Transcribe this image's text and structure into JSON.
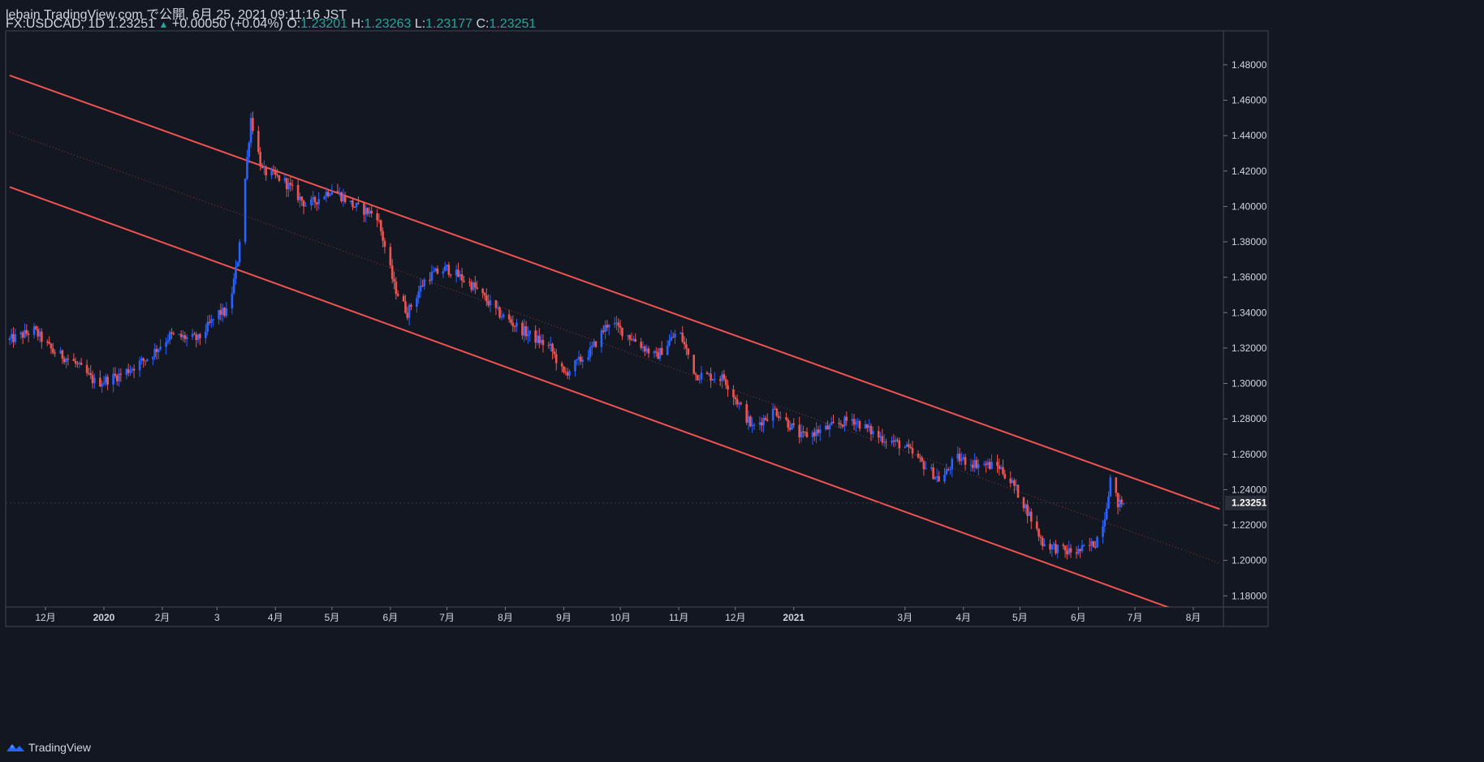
{
  "header": {
    "publisher": "lebain TradingView.com で公開, 6月 25, 2021 09:11:16 JST",
    "symbol_line_prefix": "FX:USDCAD, 1D 1.23251",
    "change": "+0.00050 (+0.04%)",
    "o_label": "O:",
    "o_value": "1.23201",
    "h_label": "H:",
    "h_value": "1.23263",
    "l_label": "L:",
    "l_value": "1.23177",
    "c_label": "C:",
    "c_value": "1.23251"
  },
  "footer": {
    "brand": "TradingView"
  },
  "colors": {
    "background": "#131722",
    "up": "#2962ff",
    "down": "#ef5350",
    "channel": "#f05350",
    "text": "#d1d4dc",
    "accent": "#26a69a"
  },
  "chart_data": {
    "type": "candlestick",
    "symbol": "FX:USDCAD",
    "interval": "1D",
    "last_price": "1.23251",
    "y_range": [
      1.1737,
      1.4992
    ],
    "y_ticks": [
      "1.48000",
      "1.46000",
      "1.44000",
      "1.42000",
      "1.40000",
      "1.38000",
      "1.36000",
      "1.34000",
      "1.32000",
      "1.30000",
      "1.28000",
      "1.26000",
      "1.24000",
      "1.22000",
      "1.20000",
      "1.18000"
    ],
    "x_ticks": [
      "12月",
      "2020",
      "2月",
      "3",
      "4月",
      "5月",
      "6月",
      "7月",
      "8月",
      "9月",
      "10月",
      "11月",
      "12月",
      "2021",
      "3月",
      "4月",
      "5月",
      "6月",
      "7月",
      "8月"
    ],
    "x_tick_dates": [
      "2019-12-01",
      "2020-01-01",
      "2020-02-01",
      "2020-03-01",
      "2020-04-01",
      "2020-05-01",
      "2020-06-01",
      "2020-07-01",
      "2020-08-01",
      "2020-09-01",
      "2020-10-01",
      "2020-11-01",
      "2020-12-01",
      "2021-01-01",
      "2021-03-01",
      "2021-04-01",
      "2021-05-01",
      "2021-06-01",
      "2021-07-01",
      "2021-08-01"
    ],
    "price_path": [
      [
        "2019-11-12",
        1.3245
      ],
      [
        "2019-11-25",
        1.33
      ],
      [
        "2019-12-05",
        1.318
      ],
      [
        "2019-12-15",
        1.313
      ],
      [
        "2019-12-28",
        1.3
      ],
      [
        "2020-01-10",
        1.305
      ],
      [
        "2020-01-25",
        1.315
      ],
      [
        "2020-02-05",
        1.327
      ],
      [
        "2020-02-20",
        1.325
      ],
      [
        "2020-03-02",
        1.34
      ],
      [
        "2020-03-07",
        1.34
      ],
      [
        "2020-03-12",
        1.37
      ],
      [
        "2020-03-19",
        1.45
      ],
      [
        "2020-03-25",
        1.42
      ],
      [
        "2020-04-05",
        1.415
      ],
      [
        "2020-04-18",
        1.4
      ],
      [
        "2020-05-01",
        1.41
      ],
      [
        "2020-05-13",
        1.4
      ],
      [
        "2020-05-25",
        1.395
      ],
      [
        "2020-06-03",
        1.355
      ],
      [
        "2020-06-10",
        1.34
      ],
      [
        "2020-06-20",
        1.36
      ],
      [
        "2020-07-01",
        1.365
      ],
      [
        "2020-07-15",
        1.355
      ],
      [
        "2020-07-28",
        1.34
      ],
      [
        "2020-08-10",
        1.33
      ],
      [
        "2020-08-25",
        1.32
      ],
      [
        "2020-09-01",
        1.305
      ],
      [
        "2020-09-15",
        1.318
      ],
      [
        "2020-09-25",
        1.335
      ],
      [
        "2020-10-08",
        1.325
      ],
      [
        "2020-10-20",
        1.315
      ],
      [
        "2020-11-01",
        1.33
      ],
      [
        "2020-11-10",
        1.305
      ],
      [
        "2020-11-25",
        1.303
      ],
      [
        "2020-12-10",
        1.275
      ],
      [
        "2020-12-22",
        1.285
      ],
      [
        "2021-01-05",
        1.27
      ],
      [
        "2021-01-20",
        1.275
      ],
      [
        "2021-02-01",
        1.28
      ],
      [
        "2021-02-15",
        1.27
      ],
      [
        "2021-02-28",
        1.265
      ],
      [
        "2021-03-10",
        1.255
      ],
      [
        "2021-03-20",
        1.245
      ],
      [
        "2021-03-28",
        1.258
      ],
      [
        "2021-04-06",
        1.255
      ],
      [
        "2021-04-20",
        1.253
      ],
      [
        "2021-04-28",
        1.242
      ],
      [
        "2021-05-05",
        1.228
      ],
      [
        "2021-05-13",
        1.21
      ],
      [
        "2021-05-25",
        1.205
      ],
      [
        "2021-06-01",
        1.205
      ],
      [
        "2021-06-10",
        1.21
      ],
      [
        "2021-06-15",
        1.225
      ],
      [
        "2021-06-18",
        1.246
      ],
      [
        "2021-06-22",
        1.232
      ],
      [
        "2021-06-25",
        1.2325
      ]
    ],
    "channel": {
      "upper": [
        [
          "2019-11-12",
          1.474
        ],
        [
          "2021-08-15",
          1.229
        ]
      ],
      "middle": [
        [
          "2019-11-12",
          1.442
        ],
        [
          "2021-08-15",
          1.1985
        ]
      ],
      "lower": [
        [
          "2019-11-12",
          1.411
        ],
        [
          "2021-08-15",
          1.163
        ]
      ]
    },
    "grid": false,
    "legend": "none"
  }
}
